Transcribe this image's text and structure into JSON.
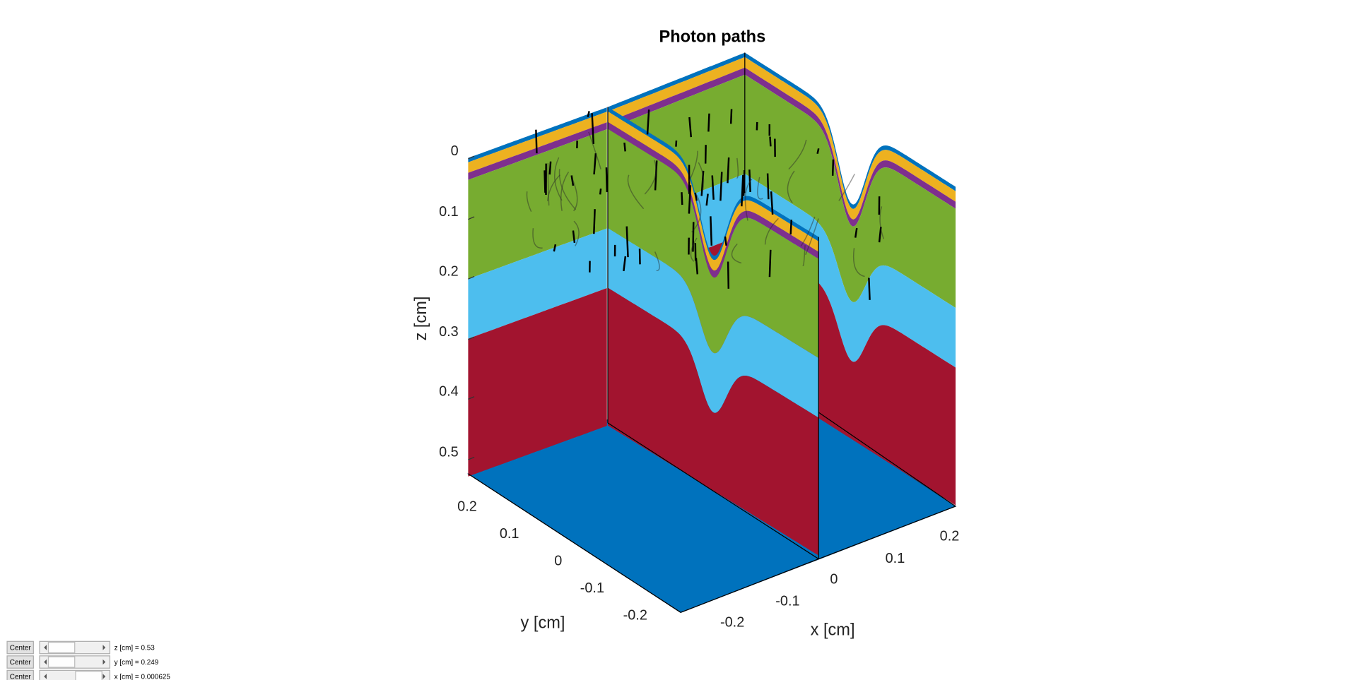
{
  "title": "Photon paths",
  "axes": {
    "z": {
      "label": "z [cm]",
      "ticks": [
        0,
        0.1,
        0.2,
        0.3,
        0.4,
        0.5
      ]
    },
    "y": {
      "label": "y [cm]",
      "ticks": [
        0.2,
        0.1,
        0,
        -0.1,
        -0.2
      ]
    },
    "x": {
      "label": "x [cm]",
      "ticks": [
        0.2,
        0.1,
        0,
        -0.1,
        -0.2
      ]
    }
  },
  "controls": [
    {
      "button": "Center",
      "label": "z [cm] = 0.53"
    },
    {
      "button": "Center",
      "label": "y [cm] = 0.249"
    },
    {
      "button": "Center",
      "label": "x [cm] = 0.000625"
    }
  ]
}
